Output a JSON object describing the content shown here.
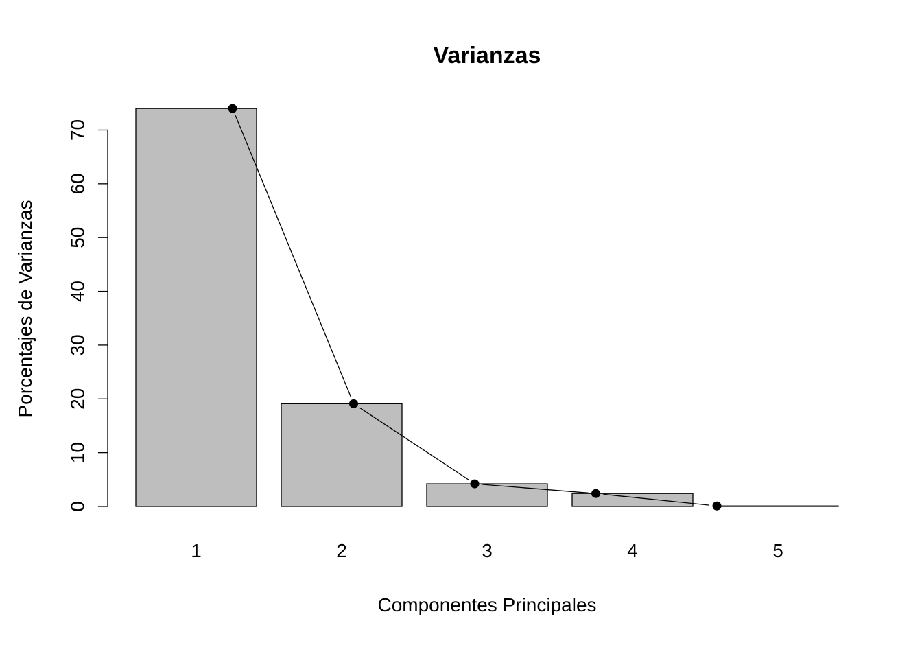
{
  "chart_data": {
    "type": "bar",
    "title": "Varianzas",
    "xlabel": "Componentes Principales",
    "ylabel": "Porcentajes de Varianzas",
    "categories": [
      "1",
      "2",
      "3",
      "4",
      "5"
    ],
    "values": [
      74.0,
      19.1,
      4.2,
      2.4,
      0.1
    ],
    "yticks": [
      0,
      10,
      20,
      30,
      40,
      50,
      60,
      70
    ],
    "ylim": [
      0,
      74
    ],
    "grid": false,
    "overlay": {
      "type": "line",
      "markers": true,
      "values": [
        74.0,
        19.1,
        4.2,
        2.4,
        0.1
      ]
    },
    "colors": {
      "bar_fill": "#bebebe",
      "bar_stroke": "#000000",
      "line": "#000000",
      "point": "#000000"
    }
  }
}
